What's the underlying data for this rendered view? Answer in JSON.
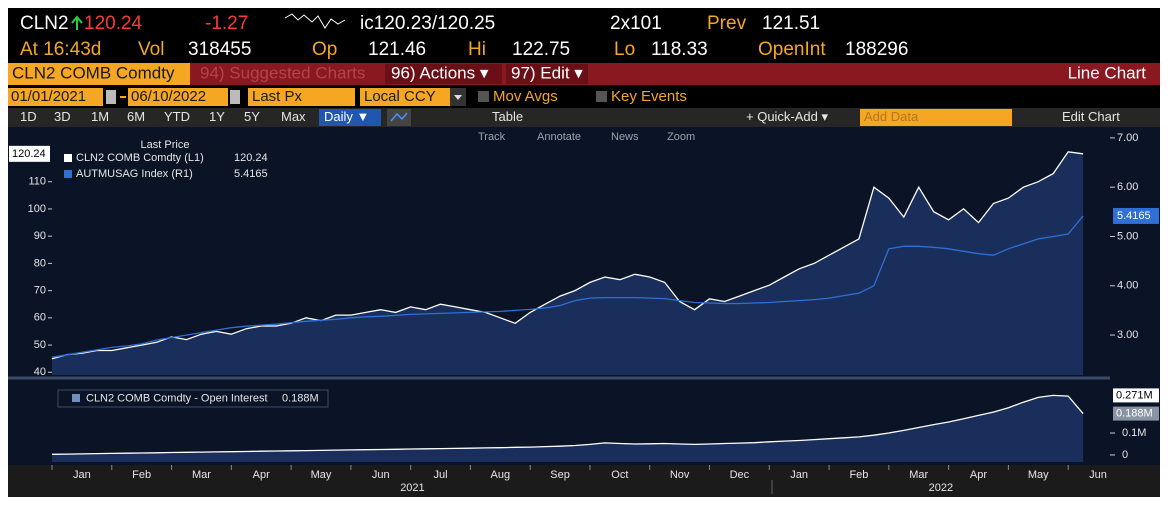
{
  "header": {
    "ticker": "CLN2",
    "last": 120.24,
    "change": -1.27,
    "bid_ask": "ic120.23/120.25",
    "size": "2x101",
    "prev_label": "Prev",
    "prev": 121.51,
    "time": "At 16:43d",
    "vol_label": "Vol",
    "vol": 318455,
    "open_label": "Op",
    "open": 121.46,
    "high_label": "Hi",
    "high": 122.75,
    "low_label": "Lo",
    "low": 118.33,
    "oi_label": "OpenInt",
    "oi": 188296
  },
  "menu": {
    "security": "CLN2 COMB Comdty",
    "suggested": "94) Suggested Charts",
    "actions": "96) Actions ▾",
    "edit": "97) Edit ▾",
    "chart_type": "Line Chart"
  },
  "controls": {
    "start": "01/01/2021",
    "end": "06/10/2022",
    "field": "Last Px",
    "currency": "Local CCY",
    "mov_avgs": "Mov Avgs",
    "key_events": "Key Events"
  },
  "toolbar": {
    "ranges": [
      "1D",
      "3D",
      "1M",
      "6M",
      "YTD",
      "1Y",
      "5Y",
      "Max"
    ],
    "frequency": "Daily ▼",
    "table": "Table",
    "quick_add": "+ Quick-Add ▾",
    "add_data": "Add Data",
    "edit_chart": "Edit Chart"
  },
  "subtoolbar": [
    "Track",
    "Annotate",
    "News",
    "Zoom"
  ],
  "chart_data": [
    {
      "type": "line",
      "legend_title": "Last Price",
      "x": [
        0,
        0.25,
        0.5,
        0.75,
        1,
        1.25,
        1.5,
        1.75,
        2,
        2.25,
        2.5,
        2.75,
        3,
        3.25,
        3.5,
        3.75,
        4,
        4.25,
        4.5,
        4.75,
        5,
        5.25,
        5.5,
        5.75,
        6,
        6.25,
        6.5,
        6.75,
        7,
        7.25,
        7.5,
        7.75,
        8,
        8.25,
        8.5,
        8.75,
        9,
        9.25,
        9.5,
        9.75,
        10,
        10.25,
        10.5,
        10.75,
        11,
        11.25,
        11.5,
        11.75,
        12,
        12.25,
        12.5,
        12.75,
        13,
        13.25,
        13.5,
        13.75,
        14,
        14.25,
        14.5,
        14.75,
        15,
        15.25,
        15.5,
        15.75,
        16,
        16.25,
        16.5,
        16.75,
        17,
        17.25
      ],
      "xlim": [
        0,
        17.7
      ],
      "ylim": [
        39,
        129
      ],
      "yticks": [
        40,
        50,
        60,
        70,
        80,
        90,
        100,
        110
      ],
      "y2lim": [
        2.19,
        7.16
      ],
      "y2ticks": [
        {
          "value": 3,
          "label": "3.00"
        },
        {
          "value": 4,
          "label": "4.00"
        },
        {
          "value": 5,
          "label": "5.00"
        },
        {
          "value": 6,
          "label": "6.00"
        },
        {
          "value": 7,
          "label": "7.00"
        }
      ],
      "series": [
        {
          "name": "CLN2 COMB Comdty (L1)",
          "color": "#ffffff",
          "fill": "#1b3160",
          "last": 120.24,
          "values": [
            45,
            46.5,
            47,
            48,
            48,
            49,
            50,
            51,
            53,
            52,
            54,
            55,
            54,
            56,
            57,
            57,
            58,
            60,
            59,
            61,
            61,
            62,
            63,
            62,
            64,
            63,
            65,
            64,
            63,
            62,
            60,
            58,
            62,
            65,
            68,
            70,
            73,
            75,
            74,
            76,
            75,
            73,
            66,
            63,
            67,
            66,
            68,
            70,
            72,
            75,
            78,
            80,
            83,
            86,
            89,
            108,
            104,
            97,
            108,
            99,
            96,
            100,
            95,
            102,
            104,
            108,
            110,
            113,
            121,
            120.24
          ]
        },
        {
          "name": "AUTMUSAG Index (R1)",
          "color": "#2f6fd6",
          "axis": "y2",
          "last": 5.4165,
          "values": [
            2.55,
            2.6,
            2.65,
            2.7,
            2.75,
            2.78,
            2.82,
            2.9,
            2.95,
            3.0,
            3.05,
            3.1,
            3.15,
            3.18,
            3.2,
            3.22,
            3.25,
            3.28,
            3.3,
            3.32,
            3.35,
            3.37,
            3.38,
            3.4,
            3.42,
            3.43,
            3.44,
            3.45,
            3.46,
            3.47,
            3.48,
            3.5,
            3.52,
            3.55,
            3.6,
            3.7,
            3.75,
            3.76,
            3.76,
            3.76,
            3.75,
            3.74,
            3.7,
            3.66,
            3.65,
            3.64,
            3.64,
            3.65,
            3.66,
            3.68,
            3.7,
            3.72,
            3.75,
            3.8,
            3.85,
            4.0,
            4.75,
            4.8,
            4.8,
            4.78,
            4.75,
            4.7,
            4.65,
            4.62,
            4.75,
            4.85,
            4.95,
            5.0,
            5.05,
            5.4165
          ]
        }
      ]
    },
    {
      "type": "line",
      "x": [
        0,
        0.25,
        0.5,
        0.75,
        1,
        1.25,
        1.5,
        1.75,
        2,
        2.25,
        2.5,
        2.75,
        3,
        3.25,
        3.5,
        3.75,
        4,
        4.25,
        4.5,
        4.75,
        5,
        5.25,
        5.5,
        5.75,
        6,
        6.25,
        6.5,
        6.75,
        7,
        7.25,
        7.5,
        7.75,
        8,
        8.25,
        8.5,
        8.75,
        9,
        9.25,
        9.5,
        9.75,
        10,
        10.25,
        10.5,
        10.75,
        11,
        11.25,
        11.5,
        11.75,
        12,
        12.25,
        12.5,
        12.75,
        13,
        13.25,
        13.5,
        13.75,
        14,
        14.25,
        14.5,
        14.75,
        15,
        15.25,
        15.5,
        15.75,
        16,
        16.25,
        16.5,
        16.75,
        17,
        17.25
      ],
      "xlim": [
        0,
        17.7
      ],
      "ylim": [
        -32000,
        332000
      ],
      "yticks": [
        0,
        {
          "value": 100000,
          "label": "0.1M"
        }
      ],
      "xticks": [
        {
          "value": 0,
          "label": "Jan"
        },
        {
          "value": 1,
          "label": "Feb"
        },
        {
          "value": 2,
          "label": "Mar"
        },
        {
          "value": 3,
          "label": "Apr"
        },
        {
          "value": 4,
          "label": "May"
        },
        {
          "value": 5,
          "label": "Jun"
        },
        {
          "value": 6,
          "label": "Jul"
        },
        {
          "value": 7,
          "label": "Aug"
        },
        {
          "value": 8,
          "label": "Sep"
        },
        {
          "value": 9,
          "label": "Oct"
        },
        {
          "value": 10,
          "label": "Nov"
        },
        {
          "value": 11,
          "label": "Dec"
        },
        {
          "value": 12,
          "label": "Jan"
        },
        {
          "value": 13,
          "label": "Feb"
        },
        {
          "value": 14,
          "label": "Mar"
        },
        {
          "value": 15,
          "label": "Apr"
        },
        {
          "value": 16,
          "label": "May"
        },
        {
          "value": 17,
          "label": "Jun"
        }
      ],
      "year_ticks": [
        {
          "value": 6.03,
          "label": "2021"
        },
        {
          "value": 14.87,
          "label": "2022"
        }
      ],
      "peak": 271000,
      "peak_label": "0.271M",
      "series": [
        {
          "name": "CLN2 COMB Comdty - Open Interest",
          "color": "#ffffff",
          "fill": "#1b3160",
          "last": 188296,
          "last_label": "0.188M",
          "values": [
            3000,
            4000,
            5000,
            6000,
            7000,
            8000,
            9000,
            10000,
            11000,
            12000,
            13000,
            14000,
            15000,
            16000,
            17000,
            18000,
            19000,
            20000,
            21000,
            22000,
            23000,
            24000,
            25000,
            26000,
            27000,
            28000,
            29000,
            30000,
            31000,
            32000,
            33000,
            35000,
            36000,
            38000,
            40000,
            43000,
            48000,
            55000,
            52000,
            50000,
            51000,
            52000,
            50000,
            48000,
            50000,
            52000,
            54000,
            56000,
            60000,
            63000,
            66000,
            70000,
            74000,
            78000,
            82000,
            90000,
            100000,
            112000,
            125000,
            138000,
            150000,
            165000,
            180000,
            195000,
            215000,
            240000,
            262000,
            271000,
            268000,
            188296
          ]
        }
      ]
    }
  ]
}
